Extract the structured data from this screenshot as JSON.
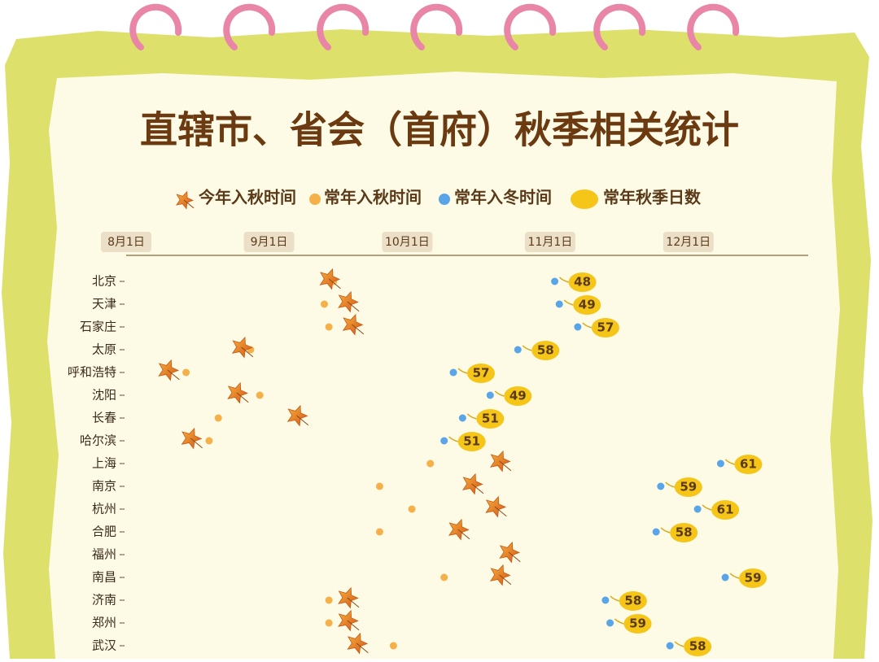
{
  "chart_data": {
    "type": "dumbbell",
    "title": "直辖市、省会（首府）秋季相关统计",
    "categories": [
      "北京",
      "天津",
      "石家庄",
      "太原",
      "呼和浩特",
      "沈阳",
      "长春",
      "哈尔滨",
      "上海",
      "南京",
      "杭州",
      "合肥",
      "福州",
      "南昌",
      "济南",
      "郑州",
      "武汉"
    ],
    "series": [
      {
        "name": "今年入秋时间",
        "color": "#e07a22",
        "values": [
          257,
          261,
          262,
          238,
          222,
          237,
          250,
          227,
          294,
          288,
          293,
          285,
          296,
          294,
          261,
          261,
          263
        ]
      },
      {
        "name": "常年入秋时间",
        "color": "#f5b04a",
        "values": [
          258,
          256,
          257,
          240,
          226,
          242,
          233,
          231,
          279,
          268,
          275,
          268,
          null,
          282,
          257,
          257,
          271
        ]
      },
      {
        "name": "常年入冬时间",
        "color": "#5aa5e8",
        "values": [
          306,
          307,
          311,
          298,
          284,
          292,
          286,
          282,
          342,
          329,
          337,
          328,
          null,
          343,
          317,
          318,
          331
        ]
      },
      {
        "name": "常年秋季日数",
        "color": "#f5c518",
        "values": [
          48,
          49,
          57,
          58,
          57,
          49,
          51,
          51,
          61,
          59,
          61,
          58,
          null,
          59,
          58,
          59,
          58
        ]
      }
    ],
    "xlim": [
      213,
      361
    ],
    "xticks": [
      {
        "value": 213,
        "label": "8月1日"
      },
      {
        "value": 244,
        "label": "9月1日"
      },
      {
        "value": 274,
        "label": "10月1日"
      },
      {
        "value": 305,
        "label": "11月1日"
      },
      {
        "value": 335,
        "label": "12月1日"
      }
    ]
  }
}
